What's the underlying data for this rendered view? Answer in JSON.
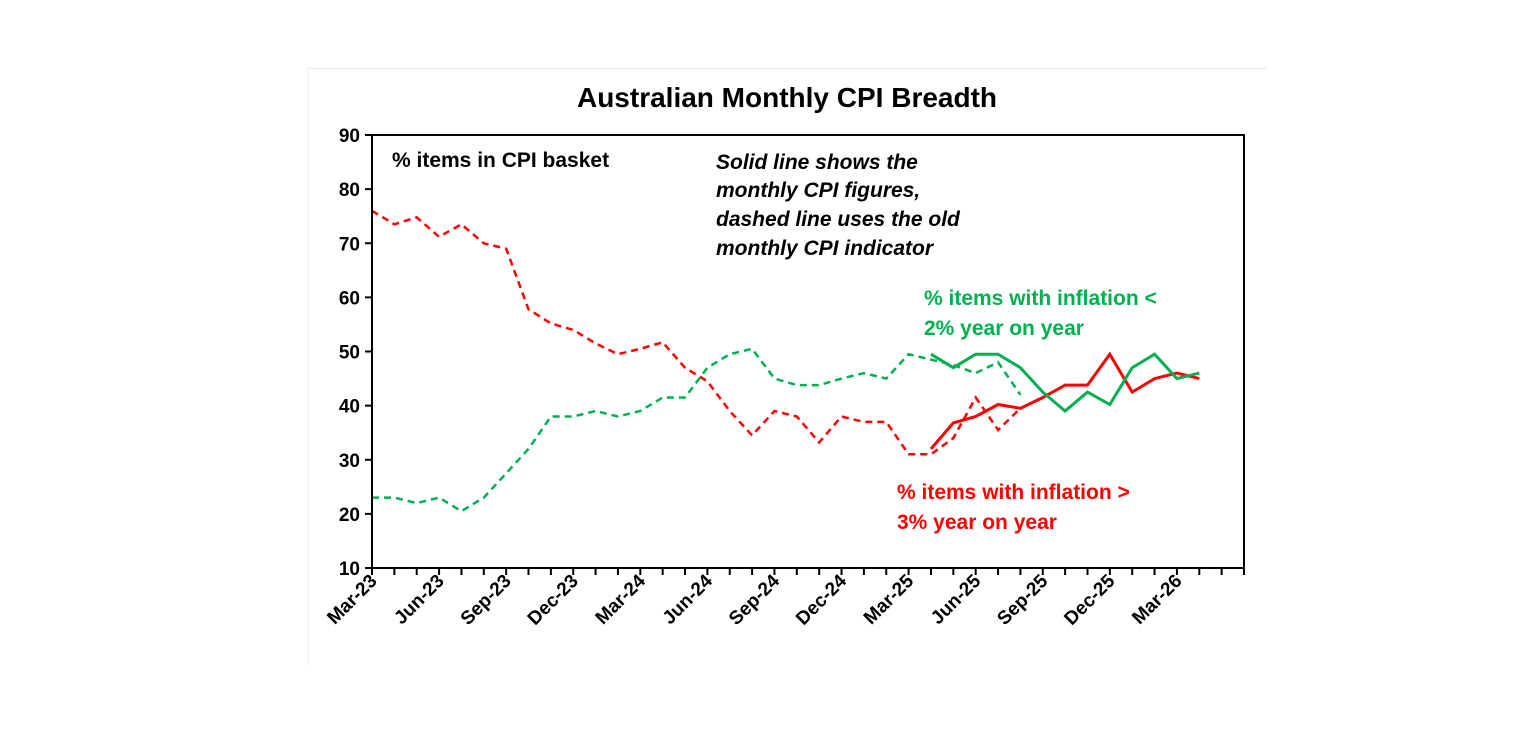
{
  "chart_data": {
    "type": "line",
    "title": "Australian Monthly CPI Breadth",
    "ylim": [
      10,
      90
    ],
    "y_ticks": [
      "10",
      "20",
      "30",
      "40",
      "50",
      "60",
      "70",
      "80",
      "90"
    ],
    "x_tick_labels": [
      "Mar-23",
      "Jun-23",
      "Sep-23",
      "Dec-23",
      "Mar-24",
      "Jun-24",
      "Sep-24",
      "Dec-24",
      "Mar-25",
      "Jun-25",
      "Sep-25",
      "Dec-25",
      "Mar-26"
    ],
    "x_start": "Mar-23",
    "grid": false,
    "annotations": {
      "y_unit": "% items in CPI basket",
      "note": [
        "Solid line shows the",
        "monthly CPI figures,",
        "dashed line uses the old",
        "monthly CPI indicator"
      ],
      "green_label": [
        "% items with inflation <",
        "2% year on year"
      ],
      "red_label": [
        "% items with inflation >",
        "3% year on year"
      ]
    },
    "series": [
      {
        "color": "#ff0000",
        "style": "dashed",
        "start": "Mar-23",
        "values": [
          76,
          73.5,
          74.8,
          71.2,
          73.5,
          70,
          69,
          57.8,
          55.2,
          54,
          51.5,
          49.5,
          50.5,
          51.7,
          47,
          44.5,
          39,
          34.5,
          39,
          38,
          33.2,
          38,
          37,
          37,
          31,
          31,
          34,
          41.5,
          35.5,
          39.5
        ]
      },
      {
        "color": "#00b050",
        "style": "dashed",
        "start": "Mar-23",
        "values": [
          23,
          23,
          22,
          23,
          20.5,
          23,
          27.5,
          32,
          38,
          38,
          39,
          38,
          39,
          41.5,
          41.5,
          47,
          49.5,
          50.5,
          45,
          43.8,
          43.8,
          45,
          46,
          45,
          49.5,
          48.5,
          47.5,
          46,
          48,
          42
        ]
      },
      {
        "color": "#ff0000",
        "style": "solid",
        "start": "Apr-25",
        "values": [
          32,
          36.8,
          38,
          40.2,
          39.5,
          41.5,
          43.8,
          43.8,
          49.5,
          42.5,
          45,
          46,
          45
        ]
      },
      {
        "color": "#00b050",
        "style": "solid",
        "start": "Apr-25",
        "values": [
          49.5,
          47,
          49.5,
          49.5,
          47,
          42.5,
          39,
          42.5,
          40.2,
          47,
          49.5,
          45,
          46
        ]
      }
    ]
  }
}
